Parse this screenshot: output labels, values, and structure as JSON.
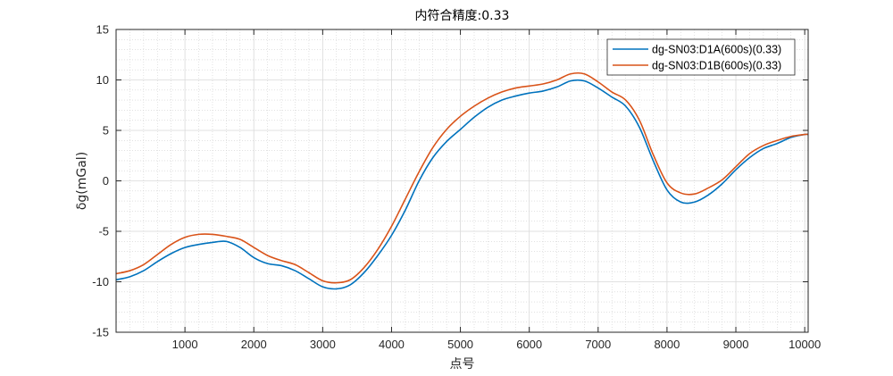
{
  "chart_data": {
    "type": "line",
    "title": "内符合精度:0.33",
    "xlabel": "点号",
    "ylabel": "δg(mGal)",
    "xlim": [
      0,
      10050
    ],
    "ylim": [
      -15,
      15
    ],
    "xticks": [
      1000,
      2000,
      3000,
      4000,
      5000,
      6000,
      7000,
      8000,
      9000,
      10000
    ],
    "yticks": [
      -15,
      -10,
      -5,
      0,
      5,
      10,
      15
    ],
    "xtick_labels": [
      "1000",
      "2000",
      "3000",
      "4000",
      "5000",
      "6000",
      "7000",
      "8000",
      "9000",
      "10000"
    ],
    "ytick_labels": [
      "-15",
      "-10",
      "-5",
      "0",
      "5",
      "10",
      "15"
    ],
    "grid": true,
    "minor_grid": true,
    "legend_position": "top-right",
    "series": [
      {
        "name": "dg-SN03:D1A(600s)(0.33)",
        "color": "#0072BD",
        "x": [
          0,
          200,
          400,
          600,
          800,
          1000,
          1200,
          1400,
          1600,
          1800,
          2000,
          2200,
          2400,
          2600,
          2800,
          3000,
          3200,
          3400,
          3600,
          3800,
          4000,
          4200,
          4400,
          4600,
          4800,
          5000,
          5200,
          5400,
          5600,
          5800,
          6000,
          6200,
          6400,
          6600,
          6800,
          7000,
          7200,
          7400,
          7600,
          7800,
          8000,
          8200,
          8400,
          8600,
          8800,
          9000,
          9200,
          9400,
          9600,
          9800,
          10000,
          10050
        ],
        "y": [
          -9.8,
          -9.5,
          -8.9,
          -8.0,
          -7.2,
          -6.6,
          -6.3,
          -6.1,
          -6.0,
          -6.6,
          -7.6,
          -8.2,
          -8.4,
          -8.9,
          -9.7,
          -10.5,
          -10.7,
          -10.3,
          -9.1,
          -7.4,
          -5.4,
          -2.9,
          0.0,
          2.3,
          3.9,
          5.1,
          6.3,
          7.3,
          8.0,
          8.4,
          8.7,
          8.9,
          9.3,
          9.9,
          9.9,
          9.2,
          8.3,
          7.4,
          5.3,
          2.0,
          -0.9,
          -2.1,
          -2.1,
          -1.4,
          -0.3,
          1.1,
          2.3,
          3.2,
          3.7,
          4.3,
          4.6,
          4.6
        ]
      },
      {
        "name": "dg-SN03:D1B(600s)(0.33)",
        "color": "#D95319",
        "x": [
          0,
          200,
          400,
          600,
          800,
          1000,
          1200,
          1400,
          1600,
          1800,
          2000,
          2200,
          2400,
          2600,
          2800,
          3000,
          3200,
          3400,
          3600,
          3800,
          4000,
          4200,
          4400,
          4600,
          4800,
          5000,
          5200,
          5400,
          5600,
          5800,
          6000,
          6200,
          6400,
          6600,
          6800,
          7000,
          7200,
          7400,
          7600,
          7800,
          8000,
          8200,
          8400,
          8600,
          8800,
          9000,
          9200,
          9400,
          9600,
          9800,
          10000,
          10050
        ],
        "y": [
          -9.2,
          -8.9,
          -8.3,
          -7.3,
          -6.3,
          -5.6,
          -5.3,
          -5.3,
          -5.5,
          -5.8,
          -6.6,
          -7.4,
          -7.9,
          -8.3,
          -9.1,
          -9.9,
          -10.1,
          -9.8,
          -8.6,
          -6.8,
          -4.5,
          -1.8,
          0.9,
          3.3,
          5.1,
          6.4,
          7.4,
          8.2,
          8.8,
          9.2,
          9.4,
          9.6,
          10.0,
          10.6,
          10.6,
          9.8,
          8.8,
          8.0,
          6.0,
          2.6,
          -0.2,
          -1.2,
          -1.3,
          -0.7,
          0.1,
          1.4,
          2.7,
          3.5,
          4.0,
          4.4,
          4.6,
          4.6
        ]
      }
    ]
  }
}
